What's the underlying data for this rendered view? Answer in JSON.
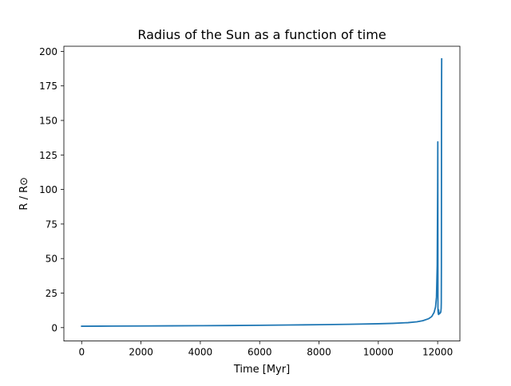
{
  "chart_data": {
    "type": "line",
    "title": "Radius of the Sun as a function of time",
    "xlabel": "Time [Myr]",
    "ylabel": "R / R⊙",
    "xlim": [
      -600,
      12750
    ],
    "ylim": [
      -9.7,
      203.7
    ],
    "xticks": [
      0,
      2000,
      4000,
      6000,
      8000,
      10000,
      12000
    ],
    "yticks": [
      0,
      25,
      50,
      75,
      100,
      125,
      150,
      175,
      200
    ],
    "grid": false,
    "legend": "none",
    "series": [
      {
        "color": "#1f77b4",
        "x": [
          0,
          1000,
          2000,
          3000,
          4000,
          5000,
          6000,
          7000,
          8000,
          9000,
          10000,
          10500,
          11000,
          11300,
          11500,
          11700,
          11800,
          11880,
          11930,
          11960,
          11985,
          12000,
          12005,
          12010,
          12020,
          12030,
          12030,
          12040,
          12060,
          12080,
          12100,
          12110,
          12118,
          12122,
          12126,
          12128,
          12130,
          12133,
          12136
        ],
        "y": [
          1.0,
          1.1,
          1.2,
          1.3,
          1.4,
          1.5,
          1.7,
          1.9,
          2.1,
          2.4,
          2.8,
          3.1,
          3.6,
          4.2,
          5.0,
          6.5,
          8.0,
          11.0,
          15.0,
          22.0,
          45.0,
          100.0,
          134.5,
          12.5,
          10.5,
          9.5,
          13.0,
          11.0,
          10.0,
          10.5,
          11.0,
          12.0,
          14.0,
          18.0,
          45.0,
          100.0,
          150.0,
          180.0,
          194.5
        ]
      }
    ]
  }
}
